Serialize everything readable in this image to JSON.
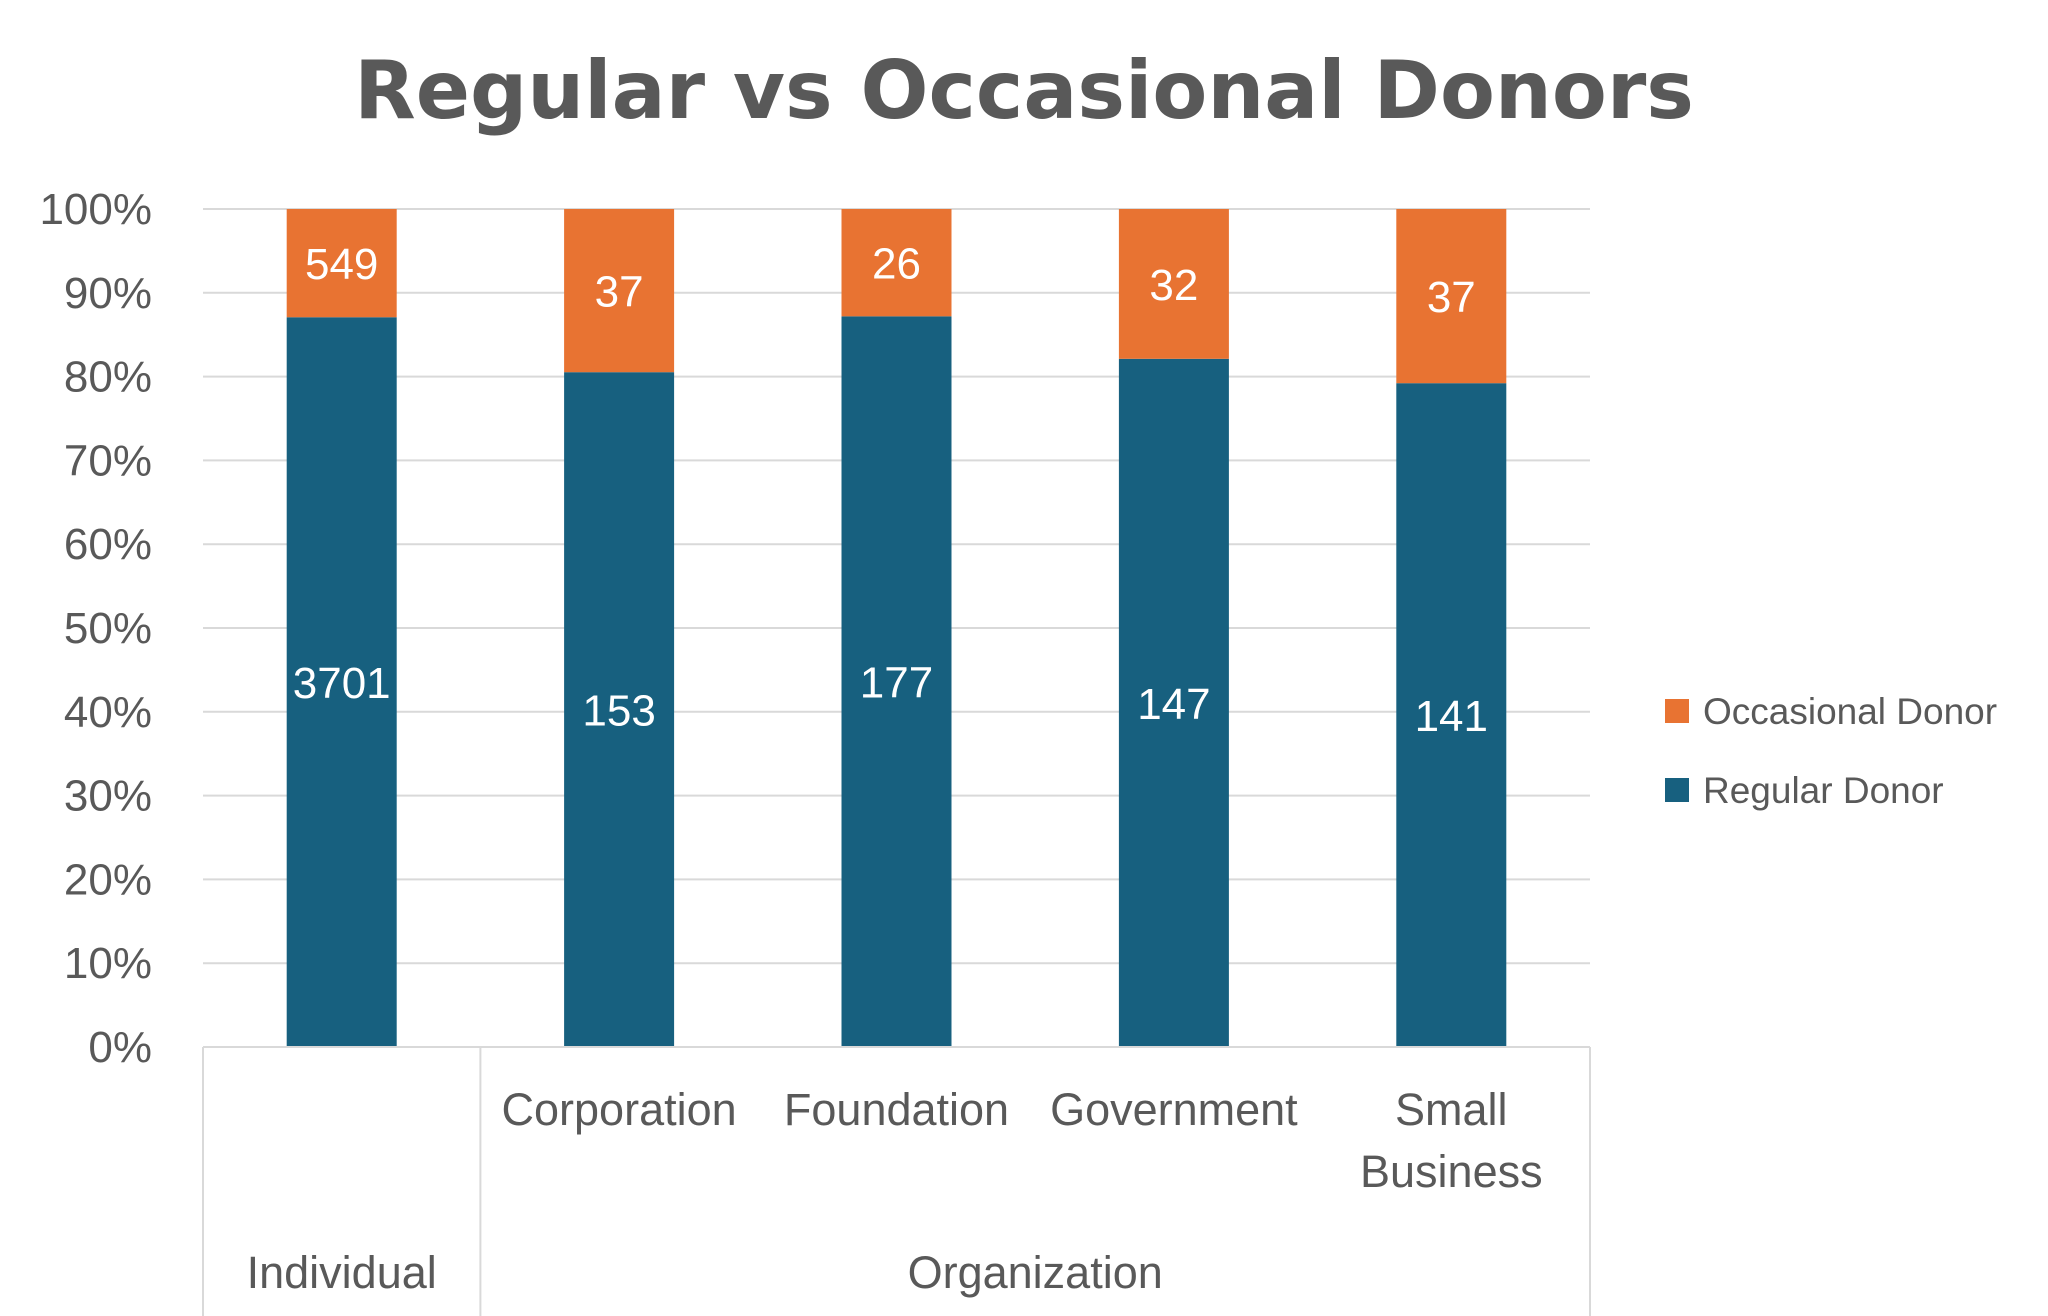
{
  "chart_data": {
    "type": "bar",
    "stacked": "percent",
    "title": "Regular vs Occasional Donors",
    "groups": [
      {
        "label": "Individual",
        "categories": [
          ""
        ]
      },
      {
        "label": "Organization",
        "categories": [
          "Corporation",
          "Foundation",
          "Government",
          "Small Business"
        ]
      }
    ],
    "categories": [
      "",
      "Corporation",
      "Foundation",
      "Government",
      "Small Business"
    ],
    "series": [
      {
        "name": "Regular Donor",
        "color": "#17607f",
        "values": [
          3701,
          153,
          177,
          147,
          141
        ]
      },
      {
        "name": "Occasional Donor",
        "color": "#e87332",
        "values": [
          549,
          37,
          26,
          32,
          37
        ]
      }
    ],
    "y_ticks": [
      "0%",
      "10%",
      "20%",
      "30%",
      "40%",
      "50%",
      "60%",
      "70%",
      "80%",
      "90%",
      "100%"
    ],
    "ylim": [
      0,
      100
    ],
    "grid": true,
    "legend": {
      "position": "right",
      "entries": [
        "Occasional Donor",
        "Regular Donor"
      ]
    },
    "colors": {
      "regular": "#17607f",
      "occasional": "#e87332",
      "grid": "#d9d9d9",
      "text": "#595959"
    }
  }
}
